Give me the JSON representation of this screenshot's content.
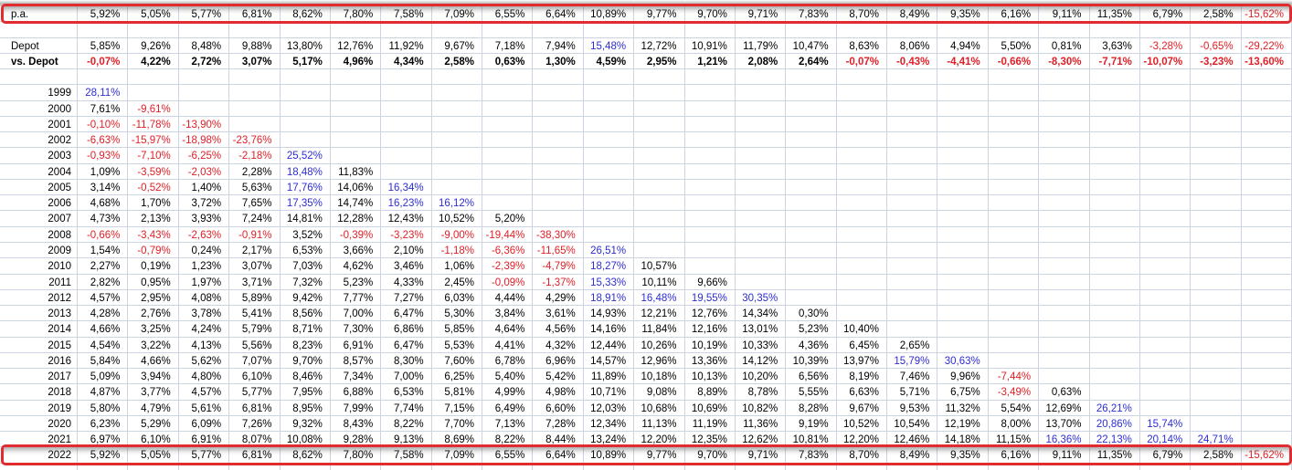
{
  "sheet": {
    "columns": 24,
    "colors": {
      "negative_text": "#e01f26",
      "high_text": "#2d2dd5",
      "normal_text": "#000000",
      "gridline": "#ccd3e2",
      "highlight_border": "#e12b2e"
    },
    "rules": {
      "high_threshold_percent": 15
    },
    "summary_rows": [
      {
        "id": "pa",
        "label": "p.a.",
        "bold": false,
        "boxed": true,
        "values": [
          "5,92%",
          "5,05%",
          "5,77%",
          "6,81%",
          "8,62%",
          "7,80%",
          "7,58%",
          "7,09%",
          "6,55%",
          "6,64%",
          "10,89%",
          "9,77%",
          "9,70%",
          "9,71%",
          "7,83%",
          "8,70%",
          "8,49%",
          "9,35%",
          "6,16%",
          "9,11%",
          "11,35%",
          "6,79%",
          "2,58%",
          "-15,62%"
        ]
      },
      {
        "id": "depot",
        "label": "Depot",
        "bold": false,
        "boxed": false,
        "values": [
          "5,85%",
          "9,26%",
          "8,48%",
          "9,88%",
          "13,80%",
          "12,76%",
          "11,92%",
          "9,67%",
          "7,18%",
          "7,94%",
          "15,48%",
          "12,72%",
          "10,91%",
          "11,79%",
          "10,47%",
          "8,63%",
          "8,06%",
          "4,94%",
          "5,50%",
          "0,81%",
          "3,63%",
          "-3,28%",
          "-0,65%",
          "-29,22%"
        ]
      },
      {
        "id": "vs_depot",
        "label": "vs. Depot",
        "bold": true,
        "boxed": false,
        "values": [
          "-0,07%",
          "4,22%",
          "2,72%",
          "3,07%",
          "5,17%",
          "4,96%",
          "4,34%",
          "2,58%",
          "0,63%",
          "1,30%",
          "4,59%",
          "2,95%",
          "1,21%",
          "2,08%",
          "2,64%",
          "-0,07%",
          "-0,43%",
          "-4,41%",
          "-0,66%",
          "-8,30%",
          "-7,71%",
          "-10,07%",
          "-3,23%",
          "-13,60%"
        ]
      }
    ],
    "year_rows": [
      {
        "year": "1999",
        "boxed": false,
        "values": [
          "28,11%"
        ]
      },
      {
        "year": "2000",
        "boxed": false,
        "values": [
          "7,61%",
          "-9,61%"
        ]
      },
      {
        "year": "2001",
        "boxed": false,
        "values": [
          "-0,10%",
          "-11,78%",
          "-13,90%"
        ]
      },
      {
        "year": "2002",
        "boxed": false,
        "values": [
          "-6,63%",
          "-15,97%",
          "-18,98%",
          "-23,76%"
        ]
      },
      {
        "year": "2003",
        "boxed": false,
        "values": [
          "-0,93%",
          "-7,10%",
          "-6,25%",
          "-2,18%",
          "25,52%"
        ]
      },
      {
        "year": "2004",
        "boxed": false,
        "values": [
          "1,09%",
          "-3,59%",
          "-2,03%",
          "2,28%",
          "18,48%",
          "11,83%"
        ]
      },
      {
        "year": "2005",
        "boxed": false,
        "values": [
          "3,14%",
          "-0,52%",
          "1,40%",
          "5,63%",
          "17,76%",
          "14,06%",
          "16,34%"
        ]
      },
      {
        "year": "2006",
        "boxed": false,
        "values": [
          "4,68%",
          "1,70%",
          "3,72%",
          "7,65%",
          "17,35%",
          "14,74%",
          "16,23%",
          "16,12%"
        ]
      },
      {
        "year": "2007",
        "boxed": false,
        "values": [
          "4,73%",
          "2,13%",
          "3,93%",
          "7,24%",
          "14,81%",
          "12,28%",
          "12,43%",
          "10,52%",
          "5,20%"
        ]
      },
      {
        "year": "2008",
        "boxed": false,
        "values": [
          "-0,66%",
          "-3,43%",
          "-2,63%",
          "-0,91%",
          "3,52%",
          "-0,39%",
          "-3,23%",
          "-9,00%",
          "-19,44%",
          "-38,30%"
        ]
      },
      {
        "year": "2009",
        "boxed": false,
        "values": [
          "1,54%",
          "-0,79%",
          "0,24%",
          "2,17%",
          "6,53%",
          "3,66%",
          "2,10%",
          "-1,18%",
          "-6,36%",
          "-11,65%",
          "26,51%"
        ]
      },
      {
        "year": "2010",
        "boxed": false,
        "values": [
          "2,27%",
          "0,19%",
          "1,23%",
          "3,07%",
          "7,03%",
          "4,62%",
          "3,46%",
          "1,06%",
          "-2,39%",
          "-4,79%",
          "18,27%",
          "10,57%"
        ]
      },
      {
        "year": "2011",
        "boxed": false,
        "values": [
          "2,82%",
          "0,95%",
          "1,97%",
          "3,71%",
          "7,32%",
          "5,23%",
          "4,33%",
          "2,45%",
          "-0,09%",
          "-1,37%",
          "15,33%",
          "10,11%",
          "9,66%"
        ]
      },
      {
        "year": "2012",
        "boxed": false,
        "values": [
          "4,57%",
          "2,95%",
          "4,08%",
          "5,89%",
          "9,42%",
          "7,77%",
          "7,27%",
          "6,03%",
          "4,44%",
          "4,29%",
          "18,91%",
          "16,48%",
          "19,55%",
          "30,35%"
        ]
      },
      {
        "year": "2013",
        "boxed": false,
        "values": [
          "4,28%",
          "2,76%",
          "3,78%",
          "5,41%",
          "8,56%",
          "7,00%",
          "6,47%",
          "5,30%",
          "3,84%",
          "3,61%",
          "14,93%",
          "12,21%",
          "12,76%",
          "14,34%",
          "0,30%"
        ]
      },
      {
        "year": "2014",
        "boxed": false,
        "values": [
          "4,66%",
          "3,25%",
          "4,24%",
          "5,79%",
          "8,71%",
          "7,30%",
          "6,86%",
          "5,85%",
          "4,64%",
          "4,56%",
          "14,16%",
          "11,84%",
          "12,16%",
          "13,01%",
          "5,23%",
          "10,40%"
        ]
      },
      {
        "year": "2015",
        "boxed": false,
        "values": [
          "4,54%",
          "3,22%",
          "4,13%",
          "5,56%",
          "8,23%",
          "6,91%",
          "6,47%",
          "5,53%",
          "4,41%",
          "4,32%",
          "12,44%",
          "10,26%",
          "10,19%",
          "10,33%",
          "4,36%",
          "6,45%",
          "2,65%"
        ]
      },
      {
        "year": "2016",
        "boxed": false,
        "values": [
          "5,84%",
          "4,66%",
          "5,62%",
          "7,07%",
          "9,70%",
          "8,57%",
          "8,30%",
          "7,60%",
          "6,78%",
          "6,96%",
          "14,57%",
          "12,96%",
          "13,36%",
          "14,12%",
          "10,39%",
          "13,97%",
          "15,79%",
          "30,63%"
        ]
      },
      {
        "year": "2017",
        "boxed": false,
        "values": [
          "5,09%",
          "3,94%",
          "4,80%",
          "6,10%",
          "8,46%",
          "7,34%",
          "7,00%",
          "6,25%",
          "5,40%",
          "5,42%",
          "11,89%",
          "10,18%",
          "10,13%",
          "10,20%",
          "6,56%",
          "8,19%",
          "7,46%",
          "9,96%",
          "-7,44%"
        ]
      },
      {
        "year": "2018",
        "boxed": false,
        "values": [
          "4,87%",
          "3,77%",
          "4,57%",
          "5,77%",
          "7,95%",
          "6,88%",
          "6,53%",
          "5,81%",
          "4,99%",
          "4,98%",
          "10,71%",
          "9,08%",
          "8,89%",
          "8,78%",
          "5,55%",
          "6,63%",
          "5,71%",
          "6,75%",
          "-3,49%",
          "0,63%"
        ]
      },
      {
        "year": "2019",
        "boxed": false,
        "values": [
          "5,80%",
          "4,79%",
          "5,61%",
          "6,81%",
          "8,95%",
          "7,99%",
          "7,74%",
          "7,15%",
          "6,49%",
          "6,60%",
          "12,03%",
          "10,68%",
          "10,69%",
          "10,82%",
          "8,28%",
          "9,67%",
          "9,53%",
          "11,32%",
          "5,54%",
          "12,69%",
          "26,21%"
        ]
      },
      {
        "year": "2020",
        "boxed": false,
        "values": [
          "6,23%",
          "5,29%",
          "6,09%",
          "7,26%",
          "9,32%",
          "8,43%",
          "8,22%",
          "7,70%",
          "7,13%",
          "7,28%",
          "12,34%",
          "11,13%",
          "11,19%",
          "11,36%",
          "9,19%",
          "10,52%",
          "10,54%",
          "12,19%",
          "8,00%",
          "13,70%",
          "20,86%",
          "15,74%"
        ]
      },
      {
        "year": "2021",
        "boxed": false,
        "values": [
          "6,97%",
          "6,10%",
          "6,91%",
          "8,07%",
          "10,08%",
          "9,28%",
          "9,13%",
          "8,69%",
          "8,22%",
          "8,44%",
          "13,24%",
          "12,20%",
          "12,35%",
          "12,62%",
          "10,81%",
          "12,20%",
          "12,46%",
          "14,18%",
          "11,15%",
          "16,36%",
          "22,13%",
          "20,14%",
          "24,71%"
        ]
      },
      {
        "year": "2022",
        "boxed": true,
        "values": [
          "5,92%",
          "5,05%",
          "5,77%",
          "6,81%",
          "8,62%",
          "7,80%",
          "7,58%",
          "7,09%",
          "6,55%",
          "6,64%",
          "10,89%",
          "9,77%",
          "9,70%",
          "9,71%",
          "7,83%",
          "8,70%",
          "8,49%",
          "9,35%",
          "6,16%",
          "9,11%",
          "11,35%",
          "6,79%",
          "2,58%",
          "-15,62%"
        ]
      }
    ]
  }
}
